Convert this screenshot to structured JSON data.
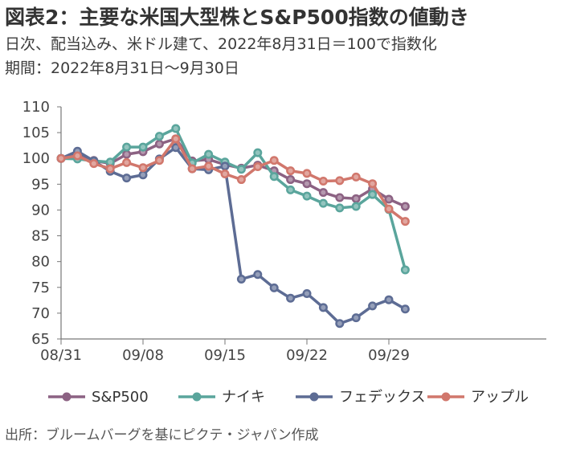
{
  "header": {
    "title": "図表2：主要な米国大型株とS&P500指数の値動き",
    "subtitle_line1": "日次、配当込み、米ドル建て、2022年8月31日＝100で指数化",
    "subtitle_line2": "期間：2022年8月31日～9月30日"
  },
  "footer": {
    "source": "出所：ブルームバーグを基にピクテ・ジャパン作成"
  },
  "chart_data": {
    "type": "line",
    "title": "図表2：主要な米国大型株とS&P500指数の値動き",
    "xlabel": "",
    "ylabel": "",
    "ylim": [
      65,
      110
    ],
    "y_ticks": [
      65,
      70,
      75,
      80,
      85,
      90,
      95,
      100,
      105,
      110
    ],
    "x_tick_labels": [
      "08/31",
      "09/08",
      "09/15",
      "09/22",
      "09/29"
    ],
    "x": [
      "08/31",
      "09/01",
      "09/02",
      "09/06",
      "09/07",
      "09/08",
      "09/09",
      "09/12",
      "09/13",
      "09/14",
      "09/15",
      "09/16",
      "09/19",
      "09/20",
      "09/21",
      "09/22",
      "09/23",
      "09/26",
      "09/27",
      "09/28",
      "09/29",
      "09/30"
    ],
    "grid": false,
    "legend_position": "bottom",
    "series": [
      {
        "name": "S&P500",
        "color": "#8c6283",
        "values": [
          100,
          100.7,
          99.6,
          99.0,
          100.8,
          101.3,
          102.8,
          103.8,
          99.5,
          99.8,
          98.8,
          98.1,
          98.7,
          97.6,
          95.9,
          95.1,
          93.4,
          92.4,
          92.2,
          94.1,
          92.1,
          90.7
        ]
      },
      {
        "name": "ナイキ",
        "color": "#5aa59c",
        "values": [
          100,
          99.9,
          99.5,
          99.3,
          102.2,
          102.2,
          104.3,
          105.8,
          99.1,
          100.8,
          99.3,
          97.9,
          101.1,
          96.5,
          93.9,
          92.7,
          91.3,
          90.4,
          90.7,
          93.0,
          90.1,
          78.4
        ]
      },
      {
        "name": "フェデックス",
        "color": "#5d6c94",
        "values": [
          100,
          101.4,
          99.5,
          97.5,
          96.2,
          96.8,
          99.9,
          102.1,
          98.0,
          97.8,
          98.5,
          76.6,
          77.5,
          74.9,
          72.9,
          73.8,
          71.1,
          68.0,
          69.1,
          71.4,
          72.6,
          70.8
        ]
      },
      {
        "name": "アップル",
        "color": "#d1776c",
        "values": [
          100,
          100.5,
          99.0,
          98.0,
          99.2,
          98.2,
          99.6,
          103.8,
          98.0,
          98.5,
          97.0,
          95.9,
          98.4,
          99.6,
          97.6,
          97.1,
          95.6,
          95.7,
          96.4,
          95.1,
          90.2,
          87.8
        ]
      }
    ]
  }
}
